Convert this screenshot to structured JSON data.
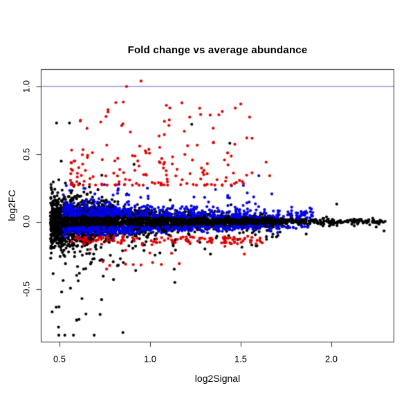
{
  "chart_data": {
    "type": "scatter",
    "title": "Fold change vs average abundance",
    "xlabel": "log2Signal",
    "ylabel": "log2FC",
    "xlim": [
      0.4,
      2.35
    ],
    "ylim": [
      -0.9,
      1.13
    ],
    "x_ticks": [
      0.5,
      1.0,
      1.5,
      2.0
    ],
    "x_tick_labels": [
      "0.5",
      "1.0",
      "1.5",
      "2.0"
    ],
    "y_ticks": [
      -0.5,
      0.0,
      0.5,
      1.0
    ],
    "y_tick_labels": [
      "-0.5",
      "0.0",
      "0.5",
      "1.0"
    ],
    "grid": false,
    "legend": "none",
    "background_color": "#ffffff",
    "axis_color": "#2e2e2e",
    "reference_line": {
      "y": 1.0,
      "color": "#8c8cd9",
      "width": 1.6
    },
    "point_style": {
      "shape": "filled-circle",
      "radius_px": 2.1
    },
    "series": [
      {
        "name": "black-points",
        "color": "#000000",
        "clusters": [
          {
            "n": 1700,
            "x": {
              "dist": "uniform",
              "min": 0.45,
              "max": 0.8
            }
          },
          {
            "n": 1150,
            "x": {
              "dist": "uniform",
              "min": 0.78,
              "max": 1.32
            }
          },
          {
            "n": 520,
            "x": {
              "dist": "uniform",
              "min": 1.3,
              "max": 1.6
            }
          },
          {
            "n": 430,
            "x": {
              "dist": "normal",
              "mean": 1.63,
              "sd": 0.035
            }
          },
          {
            "n": 260,
            "x": {
              "dist": "power",
              "min": 1.66,
              "max": 2.3,
              "k": 1.5
            }
          }
        ],
        "y": {
          "dist": "funnel",
          "base": 0.008,
          "amp": 0.1,
          "decay": 0.5,
          "x0": 0.45,
          "outlier_p": 0.055,
          "outlier_neg_bias": 0.63,
          "clip_lo": -0.84,
          "clip_hi": 0.73
        }
      },
      {
        "name": "blue-points",
        "color": "#0000e6",
        "clusters": [
          {
            "n": 430,
            "x": {
              "dist": "uniform",
              "min": 0.52,
              "max": 0.9
            }
          },
          {
            "n": 330,
            "x": {
              "dist": "uniform",
              "min": 0.88,
              "max": 1.5
            }
          },
          {
            "n": 150,
            "x": {
              "dist": "uniform",
              "min": 1.45,
              "max": 1.9
            }
          }
        ],
        "y": {
          "dist": "band",
          "offset": 0.042,
          "sd_up": 0.055,
          "sd_dn": 0.03,
          "p_up": 0.58,
          "shrink": 0.55,
          "extra_p": 0.1,
          "extra_max": 0.24,
          "clip_hi": 0.42,
          "clip_lo": -0.135
        }
      },
      {
        "name": "red-points",
        "color": "#e00000",
        "clusters": [
          {
            "n": 165,
            "x": {
              "dist": "power",
              "min": 0.56,
              "max": 1.58,
              "k": 1.25
            },
            "y": {
              "dist": "spread_up",
              "min": 0.27,
              "range": 0.62,
              "k": 2.4
            }
          },
          {
            "n": 135,
            "x": {
              "dist": "uniform",
              "min": 0.56,
              "max": 1.62
            },
            "y": {
              "dist": "band_down",
              "base": 0.103,
              "range": 0.05,
              "jitter": 0.012
            }
          },
          {
            "n": 11,
            "x": {
              "dist": "uniform",
              "min": 0.66,
              "max": 1.25
            },
            "y": {
              "dist": "spread_down",
              "min": 0.2,
              "range": 0.16
            }
          }
        ]
      }
    ],
    "notable_points": [
      {
        "x": 0.95,
        "y": 1.04,
        "color": "#e00000"
      },
      {
        "x": 0.87,
        "y": 1.0,
        "color": "#e00000"
      },
      {
        "x": 1.09,
        "y": 0.86,
        "color": "#e00000"
      },
      {
        "x": 1.47,
        "y": 0.84,
        "color": "#e00000"
      },
      {
        "x": 1.23,
        "y": 0.72,
        "color": "#000000"
      },
      {
        "x": 1.44,
        "y": 0.58,
        "color": "#000000"
      },
      {
        "x": 1.43,
        "y": 0.42,
        "color": "#e00000"
      },
      {
        "x": 1.64,
        "y": 0.44,
        "color": "#e00000"
      },
      {
        "x": 1.66,
        "y": 0.34,
        "color": "#e00000"
      },
      {
        "x": 1.6,
        "y": 0.34,
        "color": "#0000e6"
      },
      {
        "x": 2.03,
        "y": 0.13,
        "color": "#000000"
      },
      {
        "x": 1.89,
        "y": 0.05,
        "color": "#0000e6"
      },
      {
        "x": 0.76,
        "y": -0.35,
        "color": "#e00000"
      },
      {
        "x": 0.95,
        "y": -0.32,
        "color": "#e00000"
      },
      {
        "x": 1.52,
        "y": -0.24,
        "color": "#e00000"
      },
      {
        "x": 0.85,
        "y": -0.82,
        "color": "#000000"
      }
    ]
  }
}
